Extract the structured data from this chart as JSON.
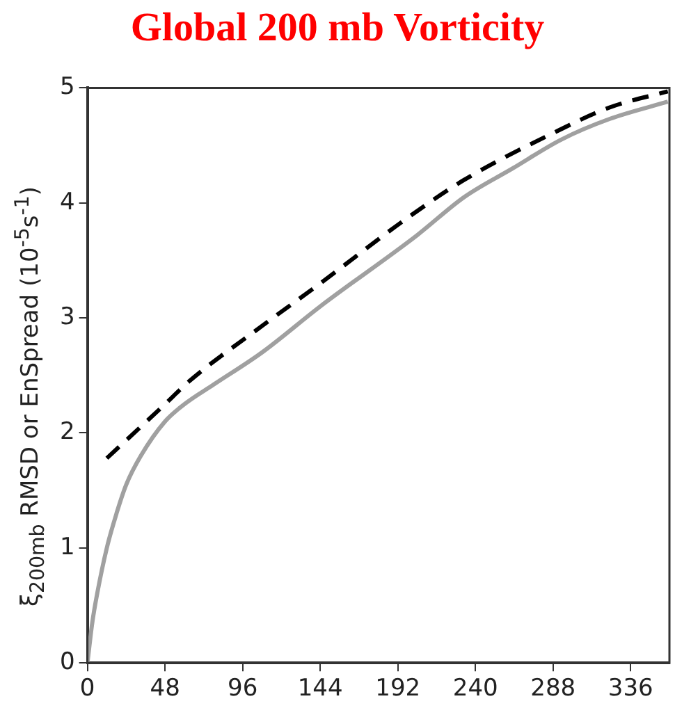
{
  "chart_data": {
    "type": "line",
    "title": "Global 200 mb Vorticity",
    "ylabel": "ξ$_{200mb}$ RMSD or EnSpread (10$^{-5}$s$^{-1}$)",
    "xlim": [
      0,
      360
    ],
    "xticks": [
      0,
      48,
      96,
      144,
      192,
      240,
      288,
      336
    ],
    "ylim": [
      0,
      5
    ],
    "yticks": [
      0,
      1,
      2,
      3,
      4,
      5
    ],
    "grid": false,
    "legend": false,
    "marker": "none",
    "series": [
      {
        "color": "#a0a0a0",
        "line_style": "solid",
        "x": [
          0,
          3,
          6,
          12,
          18,
          24,
          33,
          48,
          60,
          78,
          108,
          144,
          204,
          233,
          263,
          293,
          323,
          359
        ],
        "values": [
          0,
          0.35,
          0.6,
          1.0,
          1.3,
          1.55,
          1.8,
          2.1,
          2.25,
          2.42,
          2.7,
          3.1,
          3.72,
          4.05,
          4.3,
          4.55,
          4.73,
          4.88
        ]
      },
      {
        "color": "#000000",
        "line_style": "dashed",
        "x": [
          12,
          48,
          63,
          108,
          144,
          197,
          233,
          287,
          323,
          359
        ],
        "values": [
          1.78,
          2.25,
          2.45,
          2.93,
          3.3,
          3.86,
          4.2,
          4.6,
          4.83,
          4.97
        ]
      }
    ]
  }
}
